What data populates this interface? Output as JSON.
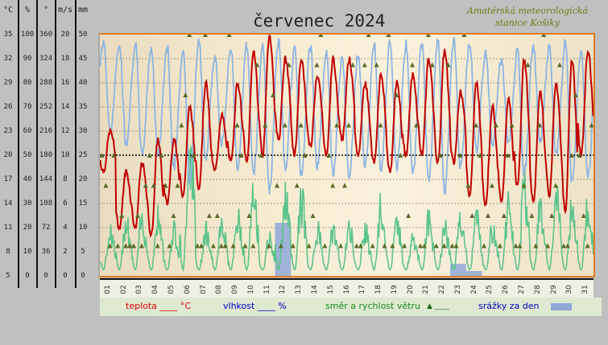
{
  "title": "červenec 2024",
  "station": [
    "Amatérská meteorologická",
    "stanice Košiky"
  ],
  "axes": [
    {
      "unit": "°C",
      "ticks": [
        "35",
        "32",
        "29",
        "26",
        "23",
        "20",
        "17",
        "14",
        "11",
        "8",
        "5"
      ]
    },
    {
      "unit": "%",
      "ticks": [
        "100",
        "90",
        "80",
        "70",
        "60",
        "50",
        "40",
        "30",
        "20",
        "10",
        "0"
      ]
    },
    {
      "unit": "°",
      "ticks": [
        "360",
        "324",
        "288",
        "252",
        "216",
        "180",
        "144",
        "108",
        "72",
        "36",
        "0"
      ]
    },
    {
      "unit": "m/s",
      "ticks": [
        "20",
        "18",
        "16",
        "14",
        "12",
        "10",
        "8",
        "6",
        "4",
        "2",
        "0"
      ]
    },
    {
      "unit": "mm",
      "ticks": [
        "50",
        "45",
        "40",
        "35",
        "30",
        "25",
        "20",
        "15",
        "10",
        "5",
        "0"
      ]
    }
  ],
  "legend": {
    "temp": "teplota ____ °C",
    "hum": "vlhkost ____ %",
    "wind": "směr a rychlost větru",
    "wind_sym": "▲ ____",
    "rain": "srážky za den"
  },
  "colors": {
    "temp": "#c00000",
    "hum": "#8db4e2",
    "wind": "#5cc48a",
    "dir": "#5a6a2a",
    "rain": "#8fa8d8"
  },
  "chart_data": {
    "type": "line",
    "title": "červenec 2024",
    "days": [
      "01",
      "02",
      "03",
      "04",
      "05",
      "06",
      "07",
      "08",
      "09",
      "10",
      "11",
      "12",
      "13",
      "14",
      "15",
      "16",
      "17",
      "18",
      "19",
      "20",
      "21",
      "22",
      "23",
      "24",
      "25",
      "26",
      "27",
      "28",
      "29",
      "30",
      "31"
    ],
    "reference_line_temp": 20,
    "temp_range": [
      5,
      35
    ],
    "hum_range": [
      0,
      100
    ],
    "dir_range": [
      0,
      360
    ],
    "wind_range": [
      0,
      20
    ],
    "rain_range": [
      0,
      50
    ],
    "temp_max": [
      23,
      18,
      19,
      22,
      22,
      26,
      29,
      25,
      29,
      33,
      35,
      32,
      32,
      30,
      32,
      32,
      29,
      30,
      29,
      30,
      32,
      33,
      28,
      29,
      26,
      27,
      32,
      28,
      29,
      32,
      33
    ],
    "temp_min": [
      18,
      11,
      11,
      10,
      14,
      15,
      16,
      18,
      19,
      19,
      20,
      22,
      20,
      21,
      20,
      22,
      20,
      19,
      18,
      20,
      20,
      19,
      19,
      15,
      14,
      14,
      16,
      14,
      15,
      13,
      20
    ],
    "hum_max": [
      97,
      96,
      96,
      95,
      95,
      94,
      97,
      90,
      95,
      96,
      96,
      97,
      94,
      95,
      93,
      90,
      92,
      96,
      97,
      96,
      97,
      98,
      98,
      97,
      92,
      90,
      93,
      95,
      95,
      97,
      93
    ],
    "hum_min": [
      60,
      55,
      50,
      50,
      45,
      40,
      48,
      55,
      45,
      42,
      35,
      45,
      42,
      45,
      42,
      42,
      45,
      44,
      45,
      42,
      40,
      35,
      45,
      52,
      55,
      55,
      42,
      55,
      50,
      38,
      40
    ],
    "wind_max": [
      4,
      5,
      5,
      5,
      4,
      13,
      4,
      5,
      5,
      7,
      3,
      7,
      7,
      4,
      4,
      4,
      4,
      6,
      5,
      3,
      5,
      4,
      5,
      5,
      4,
      6,
      8,
      6,
      7,
      6,
      6
    ],
    "wind_dir": [
      [
        180,
        135,
        45,
        180
      ],
      [
        45,
        90,
        45,
        45
      ],
      [
        45,
        90,
        45,
        135
      ],
      [
        180,
        135,
        45,
        180
      ],
      [
        135,
        45,
        90,
        135
      ],
      [
        225,
        270,
        360,
        180
      ],
      [
        45,
        45,
        360,
        90
      ],
      [
        45,
        90,
        45,
        45
      ],
      [
        360,
        45,
        225,
        180
      ],
      [
        45,
        90,
        45,
        315
      ],
      [
        180,
        225,
        45,
        270
      ],
      [
        135,
        45,
        225,
        315
      ],
      [
        45,
        135,
        225,
        180
      ],
      [
        45,
        90,
        315,
        360
      ],
      [
        45,
        180,
        135,
        225
      ],
      [
        45,
        135,
        225,
        315
      ],
      [
        45,
        45,
        315,
        360
      ],
      [
        45,
        315,
        225,
        45
      ],
      [
        360,
        45,
        270,
        180
      ],
      [
        45,
        90,
        315,
        225
      ],
      [
        45,
        45,
        360,
        315
      ],
      [
        45,
        180,
        45,
        315
      ],
      [
        45,
        45,
        180,
        360
      ],
      [
        135,
        90,
        225,
        180
      ],
      [
        45,
        90,
        135,
        225
      ],
      [
        45,
        90,
        180,
        225
      ],
      [
        45,
        45,
        135,
        315
      ],
      [
        90,
        45,
        225,
        360
      ],
      [
        45,
        90,
        135,
        315
      ],
      [
        45,
        45,
        180,
        270
      ],
      [
        180,
        90,
        45,
        225
      ]
    ],
    "rain": [
      0,
      0,
      0,
      0,
      0,
      0,
      0,
      0,
      0,
      0,
      0,
      11,
      0,
      0,
      0,
      0,
      0,
      0,
      0,
      0,
      0,
      0,
      2.5,
      1,
      0,
      0,
      0,
      0,
      0,
      0,
      0
    ]
  }
}
